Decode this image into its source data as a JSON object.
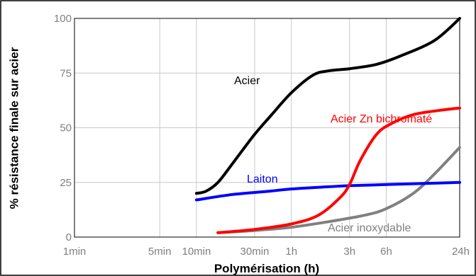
{
  "chart_data": {
    "type": "line",
    "xlabel": "Polymérisation (h)",
    "ylabel": "% résistance finale sur acier",
    "x_scale": "log",
    "x_ticks": [
      {
        "label": "1min",
        "minutes": 1
      },
      {
        "label": "5min",
        "minutes": 5
      },
      {
        "label": "10min",
        "minutes": 10
      },
      {
        "label": "30min",
        "minutes": 30
      },
      {
        "label": "1h",
        "minutes": 60
      },
      {
        "label": "3h",
        "minutes": 180
      },
      {
        "label": "6h",
        "minutes": 360
      },
      {
        "label": "24h",
        "minutes": 1440
      }
    ],
    "y_ticks": [
      0,
      25,
      50,
      75,
      100
    ],
    "ylim": [
      0,
      100
    ],
    "grid": true,
    "series": [
      {
        "name": "Acier",
        "color": "#000000",
        "points": [
          [
            10,
            20
          ],
          [
            12,
            21
          ],
          [
            15,
            25
          ],
          [
            20,
            34
          ],
          [
            30,
            47
          ],
          [
            40,
            55
          ],
          [
            60,
            66
          ],
          [
            90,
            74
          ],
          [
            120,
            76
          ],
          [
            180,
            77
          ],
          [
            300,
            79
          ],
          [
            480,
            83
          ],
          [
            900,
            90
          ],
          [
            1440,
            100
          ]
        ]
      },
      {
        "name": "Acier Zn bichromaté",
        "color": "#ff0000",
        "points": [
          [
            15,
            2
          ],
          [
            30,
            3.5
          ],
          [
            60,
            6
          ],
          [
            100,
            10
          ],
          [
            150,
            18
          ],
          [
            180,
            24
          ],
          [
            220,
            35
          ],
          [
            300,
            47
          ],
          [
            400,
            52
          ],
          [
            600,
            56
          ],
          [
            1000,
            58
          ],
          [
            1440,
            59
          ]
        ]
      },
      {
        "name": "Laiton",
        "color": "#0000ff",
        "points": [
          [
            10,
            17
          ],
          [
            20,
            19.5
          ],
          [
            40,
            21
          ],
          [
            60,
            22
          ],
          [
            120,
            23
          ],
          [
            180,
            23.5
          ],
          [
            360,
            24
          ],
          [
            720,
            24.5
          ],
          [
            1440,
            25
          ]
        ]
      },
      {
        "name": "Acier inoxydable",
        "color": "#808080",
        "points": [
          [
            15,
            2
          ],
          [
            30,
            3
          ],
          [
            60,
            4.5
          ],
          [
            120,
            7
          ],
          [
            240,
            10
          ],
          [
            360,
            13
          ],
          [
            600,
            20
          ],
          [
            900,
            29
          ],
          [
            1440,
            41
          ]
        ]
      }
    ]
  }
}
